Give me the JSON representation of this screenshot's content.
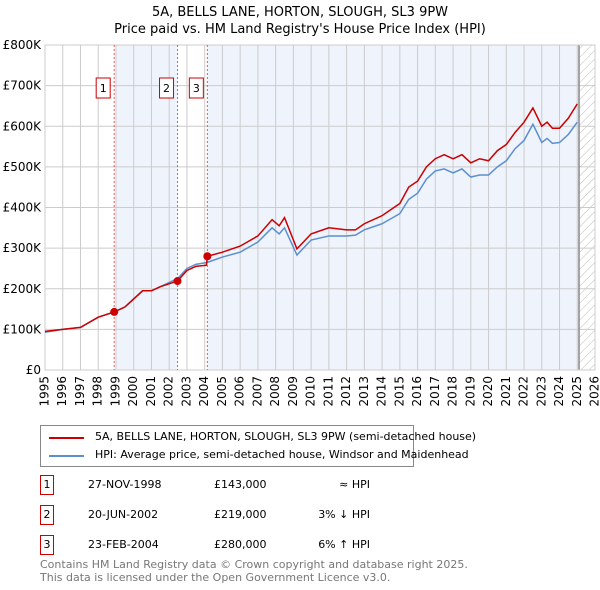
{
  "chart_data": {
    "type": "line",
    "title": "5A, BELLS LANE, HORTON, SLOUGH, SL3 9PW",
    "subtitle": "Price paid vs. HM Land Registry's House Price Index (HPI)",
    "xlim": [
      1995,
      2026
    ],
    "ylim": [
      0,
      800000
    ],
    "x_ticks": [
      "1995",
      "1996",
      "1997",
      "1998",
      "1999",
      "2000",
      "2001",
      "2002",
      "2003",
      "2004",
      "2005",
      "2006",
      "2007",
      "2008",
      "2009",
      "2010",
      "2011",
      "2012",
      "2013",
      "2014",
      "2015",
      "2016",
      "2017",
      "2018",
      "2019",
      "2020",
      "2021",
      "2022",
      "2023",
      "2024",
      "2025",
      "2026"
    ],
    "y_ticks": [
      {
        "v": 0,
        "l": "£0"
      },
      {
        "v": 100000,
        "l": "£100K"
      },
      {
        "v": 200000,
        "l": "£200K"
      },
      {
        "v": 300000,
        "l": "£300K"
      },
      {
        "v": 400000,
        "l": "£400K"
      },
      {
        "v": 500000,
        "l": "£500K"
      },
      {
        "v": 600000,
        "l": "£600K"
      },
      {
        "v": 700000,
        "l": "£700K"
      },
      {
        "v": 800000,
        "l": "£800K"
      }
    ],
    "grid": true,
    "series": [
      {
        "name": "5A, BELLS LANE, HORTON, SLOUGH, SL3 9PW (semi-detached house)",
        "color": "#cc0000",
        "x": [
          1995,
          1996,
          1997,
          1998,
          1998.9,
          1999.5,
          2000,
          2000.5,
          2001,
          2001.5,
          2002.47,
          2003,
          2003.5,
          2004.1,
          2004.15,
          2005,
          2006,
          2007,
          2007.8,
          2008.2,
          2008.5,
          2009.2,
          2010,
          2011,
          2012,
          2012.5,
          2013,
          2014,
          2015,
          2015.5,
          2016,
          2016.5,
          2017,
          2017.5,
          2018,
          2018.5,
          2019,
          2019.5,
          2020,
          2020.5,
          2021,
          2021.5,
          2022,
          2022.5,
          2023,
          2023.3,
          2023.6,
          2024,
          2024.5,
          2025
        ],
        "y": [
          95000,
          100000,
          105000,
          130000,
          143000,
          155000,
          175000,
          195000,
          195000,
          205000,
          219000,
          245000,
          255000,
          258000,
          280000,
          290000,
          305000,
          330000,
          370000,
          355000,
          375000,
          298000,
          335000,
          350000,
          345000,
          345000,
          360000,
          380000,
          410000,
          450000,
          465000,
          500000,
          520000,
          530000,
          520000,
          530000,
          510000,
          520000,
          515000,
          540000,
          555000,
          585000,
          610000,
          645000,
          600000,
          610000,
          595000,
          595000,
          620000,
          655000
        ]
      },
      {
        "name": "HPI: Average price, semi-detached house, Windsor and Maidenhead",
        "color": "#5b8fd0",
        "x": [
          1995,
          1996,
          1997,
          1998,
          1998.9,
          1999.5,
          2000,
          2000.5,
          2001,
          2001.5,
          2002.47,
          2003,
          2003.5,
          2004.15,
          2005,
          2006,
          2007,
          2007.8,
          2008.2,
          2008.5,
          2009.2,
          2010,
          2011,
          2012,
          2012.5,
          2013,
          2014,
          2015,
          2015.5,
          2016,
          2016.5,
          2017,
          2017.5,
          2018,
          2018.5,
          2019,
          2019.5,
          2020,
          2020.5,
          2021,
          2021.5,
          2022,
          2022.5,
          2023,
          2023.3,
          2023.6,
          2024,
          2024.5,
          2025
        ],
        "y": [
          93000,
          100000,
          105000,
          130000,
          143000,
          155000,
          175000,
          195000,
          195000,
          205000,
          225000,
          250000,
          260000,
          265000,
          278000,
          290000,
          315000,
          350000,
          335000,
          350000,
          283000,
          320000,
          330000,
          330000,
          332000,
          345000,
          360000,
          385000,
          420000,
          435000,
          470000,
          490000,
          495000,
          485000,
          495000,
          475000,
          480000,
          480000,
          500000,
          515000,
          545000,
          565000,
          605000,
          560000,
          570000,
          558000,
          560000,
          580000,
          610000
        ]
      }
    ],
    "transactions": [
      {
        "n": "1",
        "x": 1998.9,
        "price": 143000,
        "date": "27-NOV-1998",
        "price_label": "£143,000",
        "hpi": "≈ HPI"
      },
      {
        "n": "2",
        "x": 2002.47,
        "price": 219000,
        "date": "20-JUN-2002",
        "price_label": "£219,000",
        "hpi": "3% ↓ HPI"
      },
      {
        "n": "3",
        "x": 2004.15,
        "price": 280000,
        "date": "23-FEB-2004",
        "price_label": "£280,000",
        "hpi": "6% ↑ HPI"
      }
    ],
    "forecast_start": 2025.1
  },
  "footer": [
    "Contains HM Land Registry data © Crown copyright and database right 2025.",
    "This data is licensed under the Open Government Licence v3.0."
  ]
}
